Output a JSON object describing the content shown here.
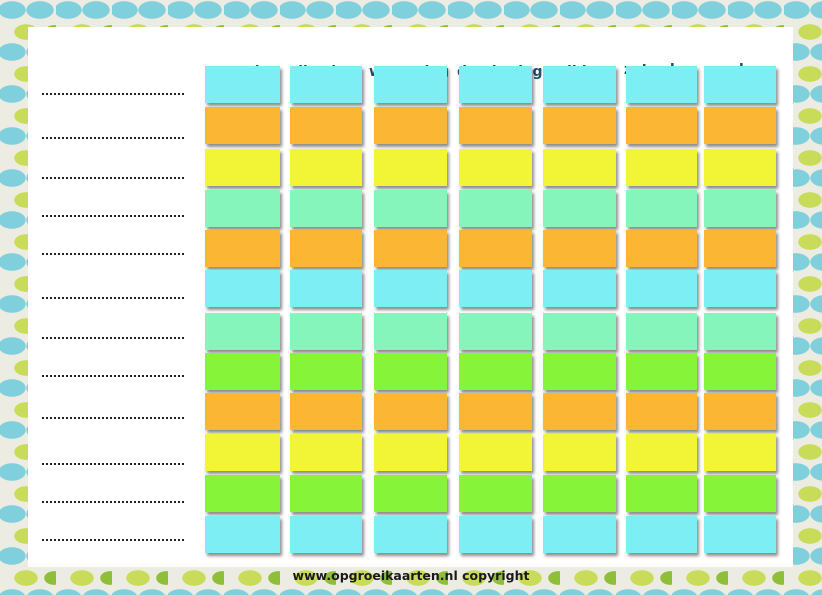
{
  "days": [
    "maandag",
    "dinsdag",
    "woensdag",
    "donderdag",
    "vrijdag",
    "zaterdag",
    "zondag"
  ],
  "row_colors": [
    "#7eeef5",
    "#fbb733",
    "#f2f535",
    "#86f5bb",
    "#fbb733",
    "#7eeef5",
    "#86f5bb",
    "#86f53a",
    "#fbb733",
    "#f2f535",
    "#86f53a",
    "#7eeef5"
  ],
  "footer": "www.opgroeikaarten.nl copyright"
}
